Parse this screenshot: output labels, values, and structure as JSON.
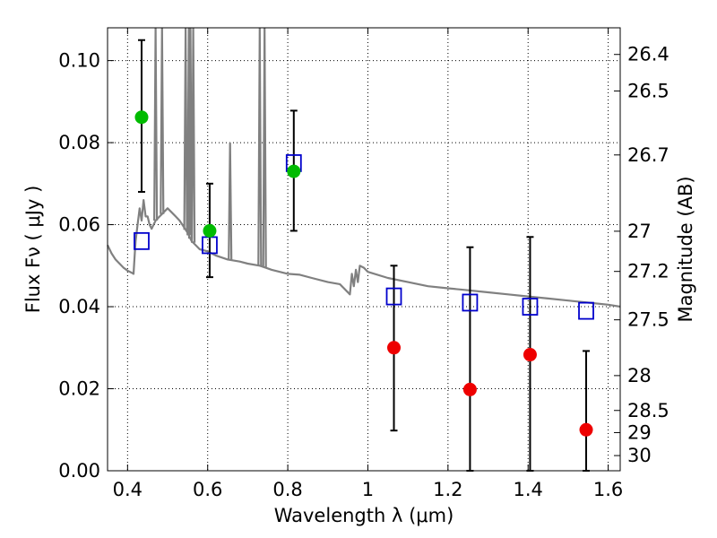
{
  "chart_data": {
    "type": "scatter",
    "title": "",
    "xlabel": "Wavelength  λ (μm)",
    "ylabel_left": "Flux  Fν  ( μJy )",
    "ylabel_right": "Magnitude (AB)",
    "xlim": [
      0.35,
      1.63
    ],
    "ylim": [
      0.0,
      0.108
    ],
    "grid": true,
    "grid_style": "dotted",
    "x_ticks": [
      0.4,
      0.6,
      0.8,
      1.0,
      1.2,
      1.4,
      1.6
    ],
    "x_tick_labels": [
      "0.4",
      "0.6",
      "0.8",
      "1",
      "1.2",
      "1.4",
      "1.6"
    ],
    "y_ticks": [
      0.0,
      0.02,
      0.04,
      0.06,
      0.08,
      0.1
    ],
    "y_tick_labels": [
      "0.00",
      "0.02",
      "0.04",
      "0.06",
      "0.08",
      "0.10"
    ],
    "right_ticks": [
      {
        "label": "26.4",
        "flux": 0.1015
      },
      {
        "label": "26.5",
        "flux": 0.0926
      },
      {
        "label": "26.7",
        "flux": 0.077
      },
      {
        "label": "27",
        "flux": 0.0584
      },
      {
        "label": "27.2",
        "flux": 0.0486
      },
      {
        "label": "27.5",
        "flux": 0.0368
      },
      {
        "label": "28",
        "flux": 0.0232
      },
      {
        "label": "28.5",
        "flux": 0.0147
      },
      {
        "label": "29",
        "flux": 0.0093
      },
      {
        "label": "30",
        "flux": 0.0037
      }
    ],
    "colors": {
      "spectrum": "#808080",
      "model": "#0000cc",
      "detection": "#00bb00",
      "upper": "#ee0000",
      "errorbar": "#000000",
      "grid": "#000000"
    },
    "series": [
      {
        "marker": "open-square",
        "color": "#0000cc",
        "x": [
          0.435,
          0.605,
          0.815,
          1.065,
          1.255,
          1.405,
          1.545
        ],
        "y": [
          0.056,
          0.055,
          0.075,
          0.0425,
          0.041,
          0.04,
          0.039
        ]
      },
      {
        "marker": "filled-circle",
        "color": "#00bb00",
        "x": [
          0.435,
          0.605,
          0.815
        ],
        "y": [
          0.0862,
          0.0585,
          0.073
        ],
        "yerr_low": [
          0.068,
          0.0472,
          0.0585
        ],
        "yerr_high": [
          0.105,
          0.07,
          0.0878
        ]
      },
      {
        "marker": "filled-circle",
        "color": "#ee0000",
        "x": [
          1.065,
          1.255,
          1.405,
          1.545
        ],
        "y": [
          0.03,
          0.0198,
          0.0283,
          0.01
        ],
        "yerr_low": [
          0.0098,
          0.0,
          0.0,
          0.0
        ],
        "yerr_high": [
          0.05,
          0.0545,
          0.057,
          0.0292
        ]
      }
    ],
    "spectrum": {
      "x": [
        0.35,
        0.36,
        0.37,
        0.38,
        0.39,
        0.4,
        0.41,
        0.415,
        0.418,
        0.42,
        0.425,
        0.43,
        0.435,
        0.44,
        0.445,
        0.45,
        0.455,
        0.46,
        0.47,
        0.48,
        0.49,
        0.5,
        0.51,
        0.52,
        0.53,
        0.54,
        0.55,
        0.555,
        0.56,
        0.57,
        0.58,
        0.6,
        0.62,
        0.65,
        0.68,
        0.7,
        0.73,
        0.745,
        0.76,
        0.78,
        0.8,
        0.83,
        0.86,
        0.9,
        0.93,
        0.955,
        0.96,
        0.965,
        0.97,
        0.975,
        0.98,
        0.99,
        1.0,
        1.05,
        1.1,
        1.15,
        1.2,
        1.25,
        1.3,
        1.35,
        1.4,
        1.45,
        1.5,
        1.55,
        1.6,
        1.63
      ],
      "y": [
        0.055,
        0.053,
        0.0515,
        0.0505,
        0.0495,
        0.0488,
        0.0483,
        0.048,
        0.053,
        0.056,
        0.06,
        0.064,
        0.061,
        0.066,
        0.062,
        0.062,
        0.06,
        0.059,
        0.061,
        0.062,
        0.063,
        0.064,
        0.063,
        0.062,
        0.061,
        0.0595,
        0.058,
        0.057,
        0.056,
        0.055,
        0.054,
        0.0535,
        0.0525,
        0.0515,
        0.051,
        0.0505,
        0.05,
        0.0495,
        0.049,
        0.0485,
        0.048,
        0.0478,
        0.047,
        0.046,
        0.0455,
        0.043,
        0.048,
        0.045,
        0.049,
        0.046,
        0.05,
        0.0495,
        0.0485,
        0.047,
        0.046,
        0.045,
        0.0445,
        0.044,
        0.0435,
        0.043,
        0.0425,
        0.042,
        0.0415,
        0.041,
        0.0405,
        0.04
      ]
    },
    "emission_lines": [
      {
        "x": 0.47,
        "peak": 0.108
      },
      {
        "x": 0.486,
        "peak": 0.108
      },
      {
        "x": 0.545,
        "peak": 0.108
      },
      {
        "x": 0.553,
        "peak": 0.108
      },
      {
        "x": 0.557,
        "peak": 0.108
      },
      {
        "x": 0.564,
        "peak": 0.108
      },
      {
        "x": 0.656,
        "peak": 0.08
      },
      {
        "x": 0.73,
        "peak": 0.108
      },
      {
        "x": 0.742,
        "peak": 0.108
      }
    ]
  }
}
